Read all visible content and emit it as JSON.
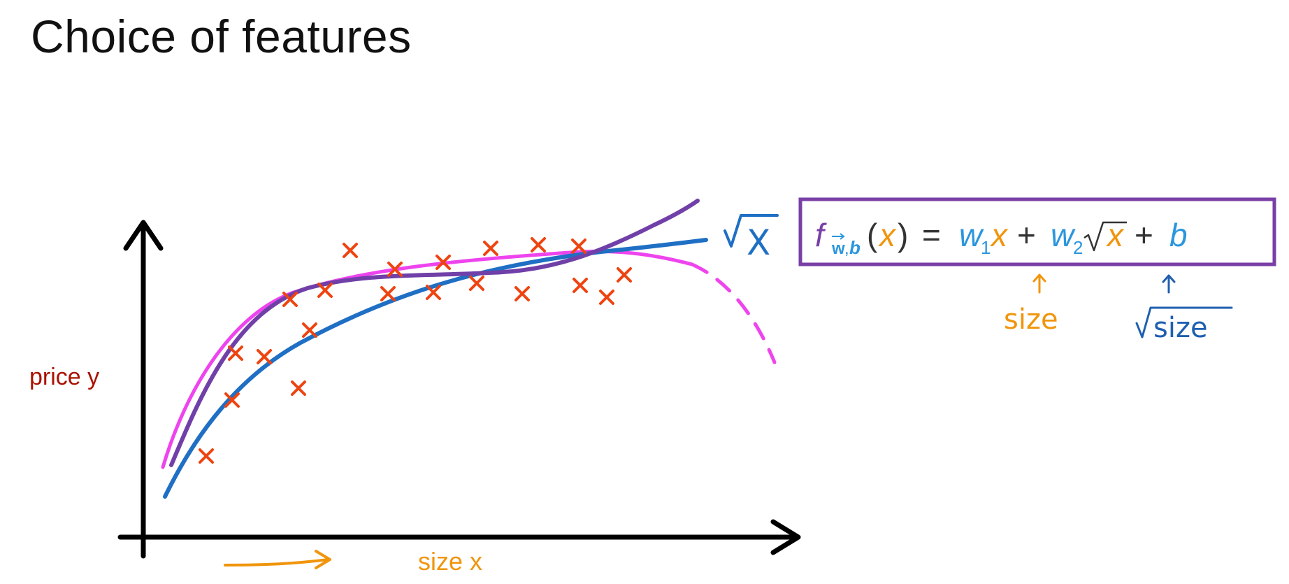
{
  "slide": {
    "title": "Choice of features"
  },
  "axes": {
    "y_label": "price y",
    "x_label": "size x"
  },
  "curve_label": "√x",
  "formula": {
    "f": "f",
    "sub_w": "w",
    "sub_b": "b",
    "open_paren": "(",
    "x1": "x",
    "close_paren": ")",
    "equals": "=",
    "w1": "w",
    "w1_sub": "1",
    "x2": "x",
    "plus1": "+",
    "w2": "w",
    "w2_sub": "2",
    "sqrt_x": "x",
    "plus2": "+",
    "b": "b"
  },
  "annotations": {
    "size_note": "size",
    "sqrt_size_note": "size"
  },
  "colors": {
    "title": "#111111",
    "axis": "#000000",
    "y_label": "#aa1100",
    "x_label": "#f0950c",
    "data_marks": "#ee4411",
    "sqrt_curve": "#1f6fc4",
    "poly_curve": "#7040a8",
    "cubic_curve": "#ee44ee",
    "formula_box": "#7a3fa6",
    "formula_x": "#f0950c",
    "formula_w": "#2a96dd",
    "formula_f": "#7a3fa6"
  }
}
